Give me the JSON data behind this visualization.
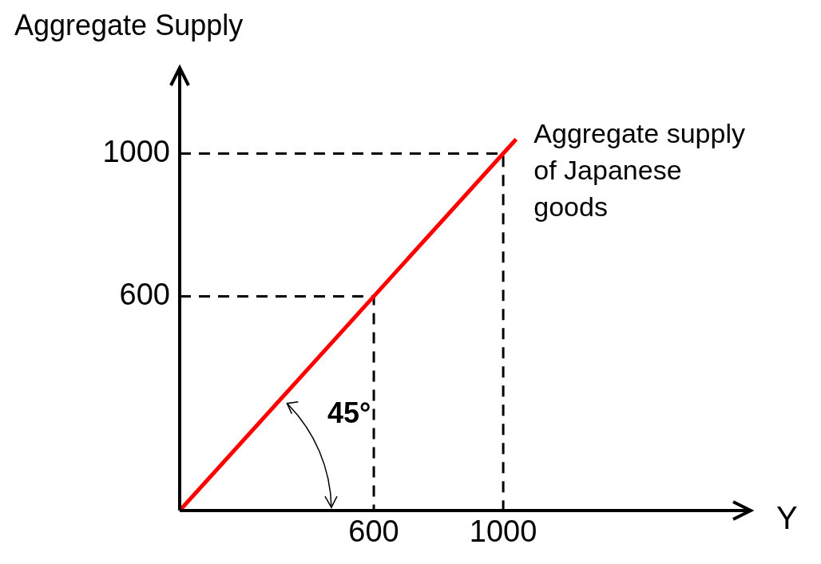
{
  "chart_data": {
    "type": "line",
    "ylabel": "Aggregate Supply",
    "xlabel": "Y",
    "xlim": [
      0,
      1765
    ],
    "ylim": [
      0,
      1240
    ],
    "xticks": [
      600,
      1000
    ],
    "yticks": [
      600,
      1000
    ],
    "grid": false,
    "legend": false,
    "marker": "none",
    "annotations": [
      "45°"
    ],
    "series": [
      {
        "name": "Aggregate supply of Japanese goods",
        "color": "#ff0000",
        "x": [
          0,
          1040
        ],
        "values": [
          0,
          1040
        ]
      },
      {
        "color": "#000000",
        "line_style": "dashed",
        "x": [
          0,
          1000,
          1000
        ],
        "values": [
          1000,
          1000,
          0
        ]
      },
      {
        "color": "#000000",
        "line_style": "dashed",
        "x": [
          0,
          600,
          600
        ],
        "values": [
          600,
          600,
          0
        ]
      }
    ]
  }
}
